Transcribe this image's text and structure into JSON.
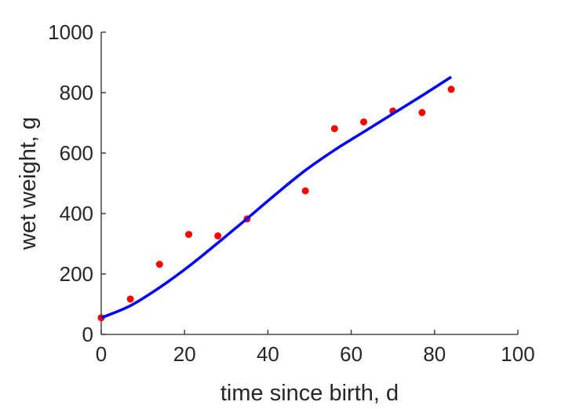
{
  "chart_data": {
    "type": "scatter",
    "title": "",
    "xlabel": "time since birth, d",
    "ylabel": "wet weight, g",
    "xlim": [
      0,
      100
    ],
    "ylim": [
      0,
      1000
    ],
    "xticks": [
      0,
      20,
      40,
      60,
      80,
      100
    ],
    "yticks": [
      0,
      200,
      400,
      600,
      800,
      1000
    ],
    "grid": false,
    "series": [
      {
        "kind": "points",
        "color": "#ff0000",
        "x": [
          0,
          7,
          14,
          21,
          28,
          35,
          49,
          56,
          63,
          70,
          77,
          84
        ],
        "y": [
          55,
          117,
          232,
          331,
          326,
          382,
          475,
          681,
          703,
          739,
          734,
          811
        ]
      },
      {
        "kind": "line",
        "color": "#0000ff",
        "x": [
          0,
          7,
          14,
          21,
          28,
          35,
          42,
          49,
          56,
          63,
          70,
          77,
          84
        ],
        "y": [
          55,
          95,
          155,
          225,
          303,
          383,
          465,
          543,
          610,
          670,
          730,
          790,
          852
        ]
      }
    ]
  }
}
